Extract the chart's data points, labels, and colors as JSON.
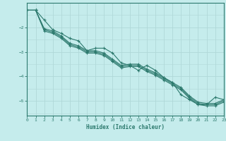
{
  "xlabel": "Humidex (Indice chaleur)",
  "ylabel": "",
  "bg_color": "#c5ecec",
  "grid_color": "#b0d8d8",
  "line_color": "#2d7a6e",
  "xlim": [
    0,
    23
  ],
  "ylim": [
    -5.6,
    -1.0
  ],
  "yticks": [
    -5,
    -4,
    -3,
    -2
  ],
  "xticks": [
    0,
    1,
    2,
    3,
    4,
    5,
    6,
    7,
    8,
    9,
    10,
    11,
    12,
    13,
    14,
    15,
    16,
    17,
    18,
    19,
    20,
    21,
    22,
    23
  ],
  "line1_x": [
    0,
    1,
    2,
    3,
    4,
    5,
    6,
    7,
    8,
    9,
    10,
    11,
    12,
    13,
    14,
    15,
    16,
    17,
    18,
    19,
    20,
    21,
    22,
    23
  ],
  "line1_y": [
    -1.3,
    -1.3,
    -1.7,
    -2.1,
    -2.25,
    -2.45,
    -2.55,
    -2.95,
    -2.85,
    -2.85,
    -3.05,
    -3.45,
    -3.55,
    -3.75,
    -3.55,
    -3.75,
    -4.05,
    -4.25,
    -4.75,
    -4.95,
    -5.15,
    -5.15,
    -4.85,
    -4.95
  ],
  "line2_x": [
    0,
    1,
    2,
    3,
    4,
    5,
    6,
    7,
    8,
    9,
    10,
    11,
    12,
    13,
    14,
    15,
    16,
    17,
    18,
    19,
    20,
    21,
    22,
    23
  ],
  "line2_y": [
    -1.3,
    -1.3,
    -2.05,
    -2.15,
    -2.35,
    -2.65,
    -2.75,
    -2.95,
    -2.95,
    -3.05,
    -3.3,
    -3.55,
    -3.5,
    -3.5,
    -3.7,
    -3.85,
    -4.05,
    -4.25,
    -4.45,
    -4.8,
    -5.05,
    -5.1,
    -5.1,
    -4.95
  ],
  "line3_x": [
    0,
    1,
    2,
    3,
    4,
    5,
    6,
    7,
    8,
    9,
    10,
    11,
    12,
    13,
    14,
    15,
    16,
    17,
    18,
    19,
    20,
    21,
    22,
    23
  ],
  "line3_y": [
    -1.3,
    -1.3,
    -2.1,
    -2.2,
    -2.4,
    -2.7,
    -2.8,
    -3.0,
    -3.0,
    -3.1,
    -3.35,
    -3.6,
    -3.55,
    -3.55,
    -3.75,
    -3.9,
    -4.1,
    -4.3,
    -4.5,
    -4.85,
    -5.1,
    -5.15,
    -5.15,
    -5.0
  ],
  "line4_x": [
    0,
    1,
    2,
    3,
    4,
    5,
    6,
    7,
    8,
    9,
    10,
    11,
    12,
    13,
    14,
    15,
    16,
    17,
    18,
    19,
    20,
    21,
    22,
    23
  ],
  "line4_y": [
    -1.3,
    -1.3,
    -2.15,
    -2.25,
    -2.45,
    -2.75,
    -2.85,
    -3.05,
    -3.05,
    -3.15,
    -3.4,
    -3.65,
    -3.6,
    -3.6,
    -3.8,
    -3.95,
    -4.15,
    -4.35,
    -4.55,
    -4.9,
    -5.15,
    -5.2,
    -5.2,
    -5.05
  ]
}
